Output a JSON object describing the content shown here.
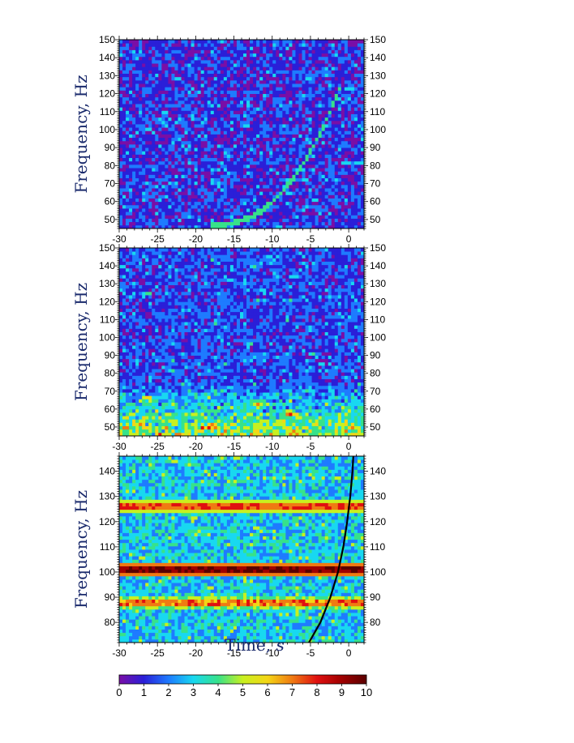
{
  "chart_data": [
    {
      "type": "heatmap",
      "ylabel": "Frequency, Hz",
      "xlabel": "",
      "xlim": [
        -30,
        2
      ],
      "ylim": [
        45,
        150
      ],
      "xticks": [
        -30,
        -25,
        -20,
        -15,
        -10,
        -5,
        0
      ],
      "yticks": [
        50,
        60,
        70,
        80,
        90,
        100,
        110,
        120,
        130,
        140,
        150
      ],
      "xtick_labels": [
        "-30",
        "-25",
        "-20",
        "-15",
        "-10",
        "-5",
        "0"
      ],
      "ytick_labels": [
        "50",
        "60",
        "70",
        "80",
        "90",
        "100",
        "110",
        "120",
        "130",
        "140",
        "150"
      ],
      "background_level": 1,
      "chirp": {
        "from": [
          -18,
          47
        ],
        "via": [
          -5,
          80
        ],
        "to": [
          -1.2,
          123
        ],
        "level": 3.5
      },
      "bands": []
    },
    {
      "type": "heatmap",
      "ylabel": "Frequency, Hz",
      "xlabel": "",
      "xlim": [
        -30,
        2
      ],
      "ylim": [
        45,
        150
      ],
      "xticks": [
        -30,
        -25,
        -20,
        -15,
        -10,
        -5,
        0
      ],
      "yticks": [
        50,
        60,
        70,
        80,
        90,
        100,
        110,
        120,
        130,
        140,
        150
      ],
      "xtick_labels": [
        "-30",
        "-25",
        "-20",
        "-15",
        "-10",
        "-5",
        "0"
      ],
      "ytick_labels": [
        "50",
        "60",
        "70",
        "80",
        "90",
        "100",
        "110",
        "120",
        "130",
        "140",
        "150"
      ],
      "background_level": 1.3,
      "low_freq_energy": {
        "below_hz": 75,
        "level": 4
      },
      "hot_spots": [
        [
          -26,
          66
        ],
        [
          -12,
          63
        ],
        [
          -8,
          58
        ],
        [
          -18,
          50
        ]
      ],
      "bands": []
    },
    {
      "type": "heatmap",
      "ylabel": "Frequency, Hz",
      "xlabel": "Time, s",
      "xlim": [
        -30,
        2
      ],
      "ylim": [
        72,
        146
      ],
      "xticks": [
        -30,
        -25,
        -20,
        -15,
        -10,
        -5,
        0
      ],
      "yticks": [
        80,
        90,
        100,
        110,
        120,
        130,
        140
      ],
      "xtick_labels": [
        "-30",
        "-25",
        "-20",
        "-15",
        "-10",
        "-5",
        "0"
      ],
      "ytick_labels": [
        "80",
        "90",
        "100",
        "110",
        "120",
        "130",
        "140"
      ],
      "background_level": 2.8,
      "bands": [
        {
          "freq": 126,
          "level": 7.5
        },
        {
          "freq": 101,
          "level": 9.5
        },
        {
          "freq": 88,
          "level": 7
        }
      ],
      "overlay_curve": [
        [
          -5.2,
          72
        ],
        [
          -3.7,
          80
        ],
        [
          -2.4,
          90
        ],
        [
          -1.4,
          100
        ],
        [
          -0.7,
          110
        ],
        [
          -0.2,
          120
        ],
        [
          0.2,
          130
        ],
        [
          0.5,
          140
        ],
        [
          0.6,
          146
        ]
      ]
    }
  ],
  "colorbar": {
    "min": 0,
    "max": 10,
    "ticks": [
      "0",
      "1",
      "2",
      "3",
      "4",
      "5",
      "6",
      "7",
      "8",
      "9",
      "10"
    ],
    "colors": [
      "#7a0ea6",
      "#2a1fd8",
      "#1e7bff",
      "#18d8f0",
      "#37e28a",
      "#c8f020",
      "#f4d616",
      "#f07a12",
      "#e01010",
      "#a00000",
      "#5a0000"
    ]
  },
  "xlabel_text": "Time,",
  "xlabel_var": "s"
}
